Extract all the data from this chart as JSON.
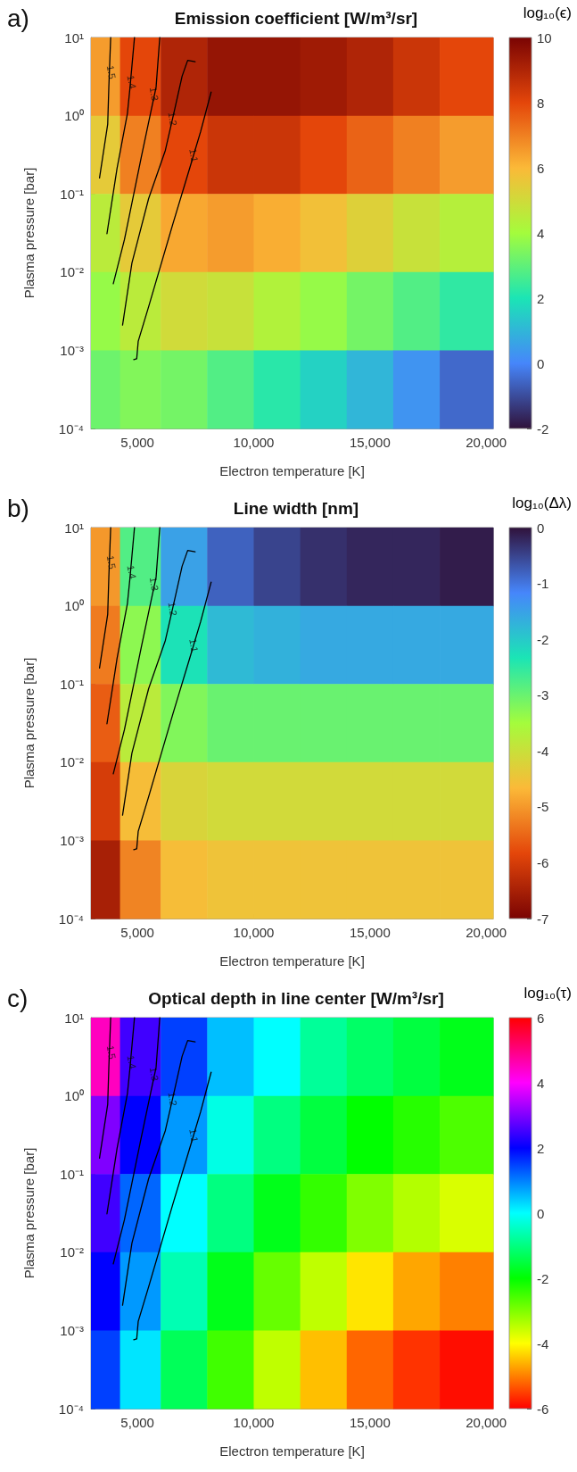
{
  "chart_data": [
    {
      "type": "heatmap",
      "title": "Emission coefficient [W/m³/sr]",
      "xlabel": "Electron temperature [K]",
      "ylabel": "Plasma pressure [bar]",
      "clabel": "log₁₀(ϵ)",
      "log": "y",
      "xlim": [
        3000,
        20300
      ],
      "xticks": [
        {
          "value": 5000,
          "label": "5,000"
        },
        {
          "value": 10000,
          "label": "10,000"
        },
        {
          "value": 15000,
          "label": "15,000"
        },
        {
          "value": 20000,
          "label": "20,000"
        }
      ],
      "ylim": [
        0.0001,
        10
      ],
      "yticks": [
        {
          "value": 0.0001,
          "label": "10⁻⁴"
        },
        {
          "value": 0.001,
          "label": "10⁻³"
        },
        {
          "value": 0.01,
          "label": "10⁻²"
        },
        {
          "value": 0.1,
          "label": "10⁻¹"
        },
        {
          "value": 1,
          "label": "10⁰"
        },
        {
          "value": 10,
          "label": "10¹"
        }
      ],
      "x": [
        3500,
        5000,
        7000,
        9000,
        11000,
        13000,
        15000,
        17000,
        19000
      ],
      "y": [
        3.16,
        0.316,
        0.0316,
        0.00316,
        0.000316
      ],
      "cells": [
        [
          6.5,
          8,
          9,
          9.5,
          9.5,
          9.3,
          9,
          8.5,
          8
        ],
        [
          5.5,
          7,
          8,
          8.5,
          8.5,
          8,
          7.5,
          7,
          6.5
        ],
        [
          4.5,
          5.5,
          6.3,
          6.5,
          6.2,
          5.8,
          5.3,
          4.8,
          4.4
        ],
        [
          3.8,
          4.5,
          5,
          4.8,
          4.3,
          3.8,
          3.3,
          2.8,
          2.3
        ],
        [
          3.2,
          3.5,
          3.3,
          2.8,
          2.2,
          1.6,
          1,
          0.3,
          -0.5
        ]
      ],
      "clim": [
        -2,
        10
      ],
      "cticks": [
        -2,
        0,
        2,
        4,
        6,
        8,
        10
      ],
      "colors": [
        "#30123b",
        "#4686fb",
        "#1be5b5",
        "#a4fc3c",
        "#fbb938",
        "#e4460a",
        "#7a0403"
      ],
      "series": [
        {
          "type": "line",
          "color": "#000000",
          "x": [
            3848,
            3768,
            3720,
            3368
          ],
          "values": [
            10,
            2.3,
            0.78,
            0.16
          ]
        },
        {
          "type": "line",
          "color": "#000000",
          "x": [
            4872,
            4680,
            4568,
            4120,
            3688
          ],
          "values": [
            10,
            2.3,
            1.07,
            0.21,
            0.031
          ]
        },
        {
          "type": "line",
          "color": "#000000",
          "x": [
            5960,
            5800,
            5560,
            5160,
            4440,
            3960
          ],
          "values": [
            10,
            2.3,
            1.07,
            0.29,
            0.026,
            0.0071
          ]
        },
        {
          "type": "line",
          "color": "#000000",
          "x": [
            7480,
            7160,
            6920,
            6600,
            6200,
            5480,
            4760,
            4360
          ],
          "values": [
            4.9,
            5.1,
            3.2,
            1.2,
            0.36,
            0.087,
            0.013,
            0.0021
          ]
        },
        {
          "type": "line",
          "color": "#000000",
          "x": [
            8168,
            7720,
            7240,
            6520,
            5480,
            5032,
            4968,
            4840
          ],
          "values": [
            2.0,
            0.63,
            0.21,
            0.041,
            0.0036,
            0.0013,
            0.00078,
            0.00076
          ]
        }
      ],
      "annotations": [
        "a)",
        {
          "text": "1.5",
          "x": 3880,
          "y": 3.6
        },
        {
          "text": "1.4",
          "x": 4760,
          "y": 2.7
        },
        {
          "text": "1.3",
          "x": 5720,
          "y": 1.9
        },
        {
          "text": "1.2",
          "x": 6520,
          "y": 0.91
        },
        {
          "text": "1.1",
          "x": 7430,
          "y": 0.31
        }
      ]
    },
    {
      "type": "heatmap",
      "title": "Line width [nm]",
      "xlabel": "Electron temperature [K]",
      "ylabel": "Plasma pressure [bar]",
      "clabel": "log₁₀(Δλ)",
      "log": "y",
      "xlim": [
        3000,
        20300
      ],
      "xticks": [
        {
          "value": 5000,
          "label": "5,000"
        },
        {
          "value": 10000,
          "label": "10,000"
        },
        {
          "value": 15000,
          "label": "15,000"
        },
        {
          "value": 20000,
          "label": "20,000"
        }
      ],
      "ylim": [
        0.0001,
        10
      ],
      "yticks": [
        {
          "value": 0.0001,
          "label": "10⁻⁴"
        },
        {
          "value": 0.001,
          "label": "10⁻³"
        },
        {
          "value": 0.01,
          "label": "10⁻²"
        },
        {
          "value": 0.1,
          "label": "10⁻¹"
        },
        {
          "value": 1,
          "label": "10⁰"
        },
        {
          "value": 10,
          "label": "10¹"
        }
      ],
      "x": [
        3500,
        5000,
        7000,
        9000,
        11000,
        13000,
        15000,
        17000,
        19000
      ],
      "y": [
        3.16,
        0.316,
        0.0316,
        0.00316,
        0.000316
      ],
      "cells": [
        [
          -5,
          -2.8,
          -1.5,
          -0.8,
          -0.5,
          -0.3,
          -0.2,
          -0.2,
          -0.1
        ],
        [
          -5.3,
          -3.3,
          -2.3,
          -1.8,
          -1.7,
          -1.6,
          -1.6,
          -1.6,
          -1.6
        ],
        [
          -5.6,
          -3.8,
          -3.2,
          -3,
          -3,
          -3,
          -3,
          -3,
          -3
        ],
        [
          -6,
          -4.6,
          -4.2,
          -4.1,
          -4.1,
          -4.1,
          -4.1,
          -4.1,
          -4.1
        ],
        [
          -6.5,
          -5.2,
          -4.6,
          -4.5,
          -4.5,
          -4.5,
          -4.5,
          -4.5,
          -4.5
        ]
      ],
      "clim": [
        -7,
        0
      ],
      "cticks": [
        -7,
        -6,
        -5,
        -4,
        -3,
        -2,
        -1,
        0
      ],
      "colors": [
        "#7a0403",
        "#e4460a",
        "#fbb938",
        "#a4fc3c",
        "#1be5b5",
        "#4686fb",
        "#30123b"
      ],
      "series": [
        {
          "type": "line",
          "color": "#000000",
          "x": [
            3848,
            3768,
            3720,
            3368
          ],
          "values": [
            10,
            2.3,
            0.78,
            0.16
          ]
        },
        {
          "type": "line",
          "color": "#000000",
          "x": [
            4872,
            4680,
            4568,
            4120,
            3688
          ],
          "values": [
            10,
            2.3,
            1.07,
            0.21,
            0.031
          ]
        },
        {
          "type": "line",
          "color": "#000000",
          "x": [
            5960,
            5800,
            5560,
            5160,
            4440,
            3960
          ],
          "values": [
            10,
            2.3,
            1.07,
            0.29,
            0.026,
            0.0071
          ]
        },
        {
          "type": "line",
          "color": "#000000",
          "x": [
            7480,
            7160,
            6920,
            6600,
            6200,
            5480,
            4760,
            4360
          ],
          "values": [
            4.9,
            5.1,
            3.2,
            1.2,
            0.36,
            0.087,
            0.013,
            0.0021
          ]
        },
        {
          "type": "line",
          "color": "#000000",
          "x": [
            8168,
            7720,
            7240,
            6520,
            5480,
            5032,
            4968,
            4840
          ],
          "values": [
            2.0,
            0.63,
            0.21,
            0.041,
            0.0036,
            0.0013,
            0.00078,
            0.00076
          ]
        }
      ],
      "annotations": [
        "b)",
        {
          "text": "1.5",
          "x": 3880,
          "y": 3.6
        },
        {
          "text": "1.4",
          "x": 4760,
          "y": 2.7
        },
        {
          "text": "1.3",
          "x": 5720,
          "y": 1.9
        },
        {
          "text": "1.2",
          "x": 6520,
          "y": 0.91
        },
        {
          "text": "1.1",
          "x": 7430,
          "y": 0.31
        }
      ]
    },
    {
      "type": "heatmap",
      "title": "Optical depth in line center [W/m³/sr]",
      "xlabel": "Electron temperature [K]",
      "ylabel": "Plasma pressure [bar]",
      "clabel": "log₁₀(τ)",
      "log": "y",
      "xlim": [
        3000,
        20300
      ],
      "xticks": [
        {
          "value": 5000,
          "label": "5,000"
        },
        {
          "value": 10000,
          "label": "10,000"
        },
        {
          "value": 15000,
          "label": "15,000"
        },
        {
          "value": 20000,
          "label": "20,000"
        }
      ],
      "ylim": [
        0.0001,
        10
      ],
      "yticks": [
        {
          "value": 0.0001,
          "label": "10⁻⁴"
        },
        {
          "value": 0.001,
          "label": "10⁻³"
        },
        {
          "value": 0.01,
          "label": "10⁻²"
        },
        {
          "value": 0.1,
          "label": "10⁻¹"
        },
        {
          "value": 1,
          "label": "10⁰"
        },
        {
          "value": 10,
          "label": "10¹"
        }
      ],
      "x": [
        3500,
        5000,
        7000,
        9000,
        11000,
        13000,
        15000,
        17000,
        19000
      ],
      "y": [
        3.16,
        0.316,
        0.0316,
        0.00316,
        0.000316
      ],
      "cells": [
        [
          4.5,
          2.5,
          1.5,
          0.5,
          0,
          -0.8,
          -1.2,
          -1.5,
          -1.8
        ],
        [
          3,
          2,
          0.8,
          -0.2,
          -1,
          -1.5,
          -2,
          -2.3,
          -2.6
        ],
        [
          2.5,
          1.2,
          0,
          -1,
          -1.8,
          -2.4,
          -3,
          -3.4,
          -3.7
        ],
        [
          2,
          0.8,
          -0.6,
          -1.8,
          -2.8,
          -3.5,
          -4.2,
          -4.7,
          -5
        ],
        [
          1.5,
          0.2,
          -1.3,
          -2.5,
          -3.5,
          -4.5,
          -5.2,
          -5.6,
          -5.9
        ]
      ],
      "clim": [
        -6,
        6
      ],
      "cticks": [
        -6,
        -4,
        -2,
        0,
        2,
        4,
        6
      ],
      "colors": [
        "#ff0000",
        "#ffff00",
        "#00ff00",
        "#00ffff",
        "#0000ff",
        "#ff00ff",
        "#ff0000"
      ],
      "series": [
        {
          "type": "line",
          "color": "#000000",
          "x": [
            3848,
            3768,
            3720,
            3368
          ],
          "values": [
            10,
            2.3,
            0.78,
            0.16
          ]
        },
        {
          "type": "line",
          "color": "#000000",
          "x": [
            4872,
            4680,
            4568,
            4120,
            3688
          ],
          "values": [
            10,
            2.3,
            1.07,
            0.21,
            0.031
          ]
        },
        {
          "type": "line",
          "color": "#000000",
          "x": [
            5960,
            5800,
            5560,
            5160,
            4440,
            3960
          ],
          "values": [
            10,
            2.3,
            1.07,
            0.29,
            0.026,
            0.0071
          ]
        },
        {
          "type": "line",
          "color": "#000000",
          "x": [
            7480,
            7160,
            6920,
            6600,
            6200,
            5480,
            4760,
            4360
          ],
          "values": [
            4.9,
            5.1,
            3.2,
            1.2,
            0.36,
            0.087,
            0.013,
            0.0021
          ]
        },
        {
          "type": "line",
          "color": "#000000",
          "x": [
            8168,
            7720,
            7240,
            6520,
            5480,
            5032,
            4968,
            4840
          ],
          "values": [
            2.0,
            0.63,
            0.21,
            0.041,
            0.0036,
            0.0013,
            0.00078,
            0.00076
          ]
        }
      ],
      "annotations": [
        "c)",
        {
          "text": "1.5",
          "x": 3880,
          "y": 3.6
        },
        {
          "text": "1.4",
          "x": 4760,
          "y": 2.7
        },
        {
          "text": "1.3",
          "x": 5720,
          "y": 1.9
        },
        {
          "text": "1.2",
          "x": 6520,
          "y": 0.91
        },
        {
          "text": "1.1",
          "x": 7430,
          "y": 0.31
        }
      ]
    }
  ]
}
